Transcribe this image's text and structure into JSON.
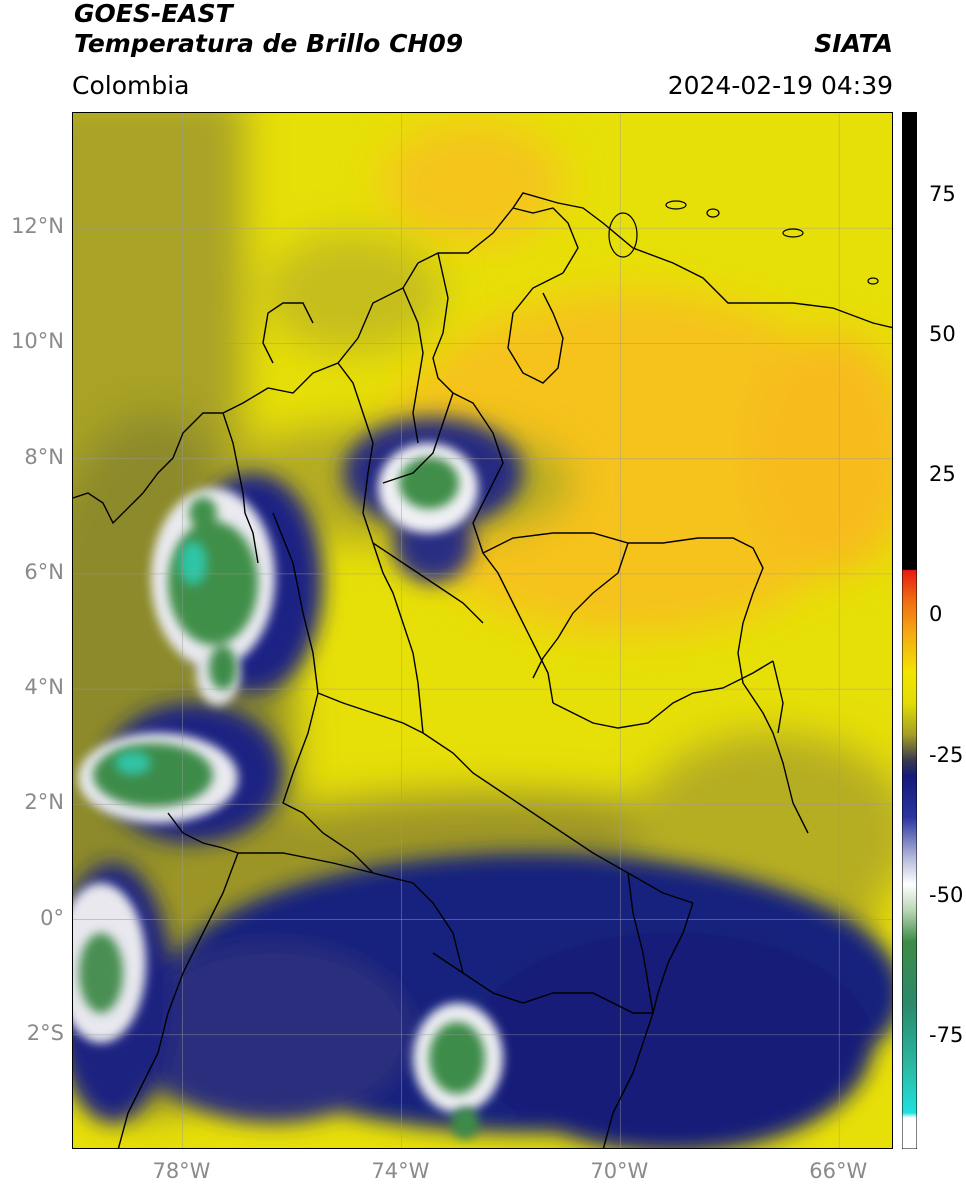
{
  "header": {
    "satellite": "GOES-EAST",
    "product": "Temperatura de Brillo CH09",
    "region": "Colombia",
    "agency": "SIATA",
    "datetime": "2024-02-19 04:39"
  },
  "map": {
    "lon_range": [
      -80.0,
      -65.0
    ],
    "lat_range": [
      -4.0,
      14.0
    ],
    "lat_ticks": [
      {
        "value": 12,
        "label": "12°N"
      },
      {
        "value": 10,
        "label": "10°N"
      },
      {
        "value": 8,
        "label": "8°N"
      },
      {
        "value": 6,
        "label": "6°N"
      },
      {
        "value": 4,
        "label": "4°N"
      },
      {
        "value": 2,
        "label": "2°N"
      },
      {
        "value": 0,
        "label": "0°"
      },
      {
        "value": -2,
        "label": "2°S"
      }
    ],
    "lon_ticks": [
      {
        "value": -78,
        "label": "78°W"
      },
      {
        "value": -74,
        "label": "74°W"
      },
      {
        "value": -70,
        "label": "70°W"
      },
      {
        "value": -66,
        "label": "66°W"
      }
    ],
    "grid": true,
    "colors": {
      "warm_yellow": "#f2ea00",
      "orange": "#f7bd1b",
      "olive": "#8e8b2c",
      "navy": "#141a7a",
      "white": "#f4f4f4",
      "green": "#3c8a45",
      "teal": "#30c7a8"
    }
  },
  "colorbar": {
    "range": [
      -95,
      90
    ],
    "ticks": [
      {
        "value": 75,
        "label": "75"
      },
      {
        "value": 50,
        "label": "50"
      },
      {
        "value": 25,
        "label": "25"
      },
      {
        "value": 0,
        "label": "0"
      },
      {
        "value": -25,
        "label": "-25"
      },
      {
        "value": -50,
        "label": "-50"
      },
      {
        "value": -75,
        "label": "-75"
      }
    ]
  }
}
